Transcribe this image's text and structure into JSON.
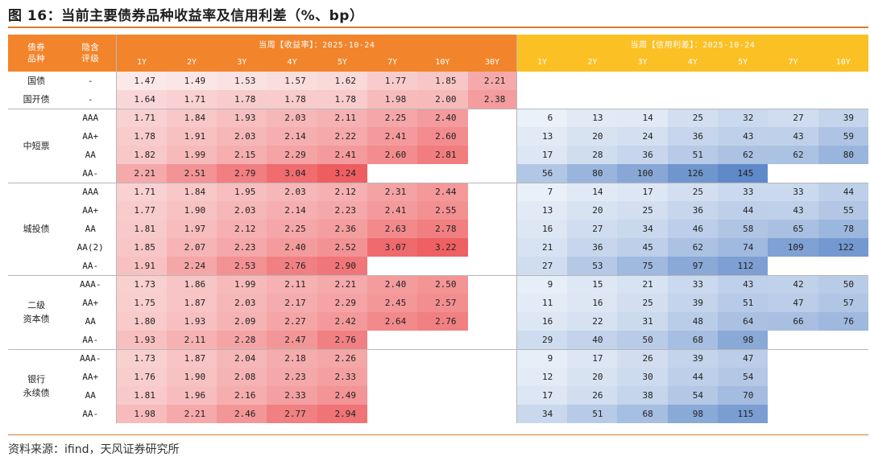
{
  "title": "图 16：当前主要债券品种收益率及信用利差（%、bp）",
  "source": "资料来源：ifind，天风证券研究所",
  "header": {
    "col_type": "债券品种",
    "col_type_lines": [
      "债券",
      "品种"
    ],
    "col_rating_lines": [
      "隐含",
      "评级"
    ],
    "yield_title": "当周【收益率】：2025-10-24",
    "spread_title": "当周【信用利差】：2025-10-24",
    "yield_tenors": [
      "1Y",
      "2Y",
      "3Y",
      "4Y",
      "5Y",
      "7Y",
      "10Y",
      "30Y"
    ],
    "spread_tenors": [
      "1Y",
      "2Y",
      "3Y",
      "4Y",
      "5Y",
      "7Y",
      "10Y"
    ]
  },
  "groups": [
    {
      "name": "国债",
      "name_lines": [
        "国债"
      ],
      "rows": [
        {
          "rating": "-",
          "yields": [
            "1.47",
            "1.49",
            "1.53",
            "1.57",
            "1.62",
            "1.77",
            "1.85",
            "2.21"
          ],
          "spreads": [
            "",
            "",
            "",
            "",
            "",
            "",
            ""
          ]
        }
      ]
    },
    {
      "name": "国开债",
      "name_lines": [
        "国开债"
      ],
      "rows": [
        {
          "rating": "-",
          "yields": [
            "1.64",
            "1.71",
            "1.78",
            "1.78",
            "1.78",
            "1.98",
            "2.00",
            "2.38"
          ],
          "spreads": [
            "",
            "",
            "",
            "",
            "",
            "",
            ""
          ]
        }
      ]
    },
    {
      "name": "中短票",
      "name_lines": [
        "中短票"
      ],
      "rows": [
        {
          "rating": "AAA",
          "yields": [
            "1.71",
            "1.84",
            "1.93",
            "2.03",
            "2.11",
            "2.25",
            "2.40",
            ""
          ],
          "spreads": [
            "6",
            "13",
            "14",
            "25",
            "32",
            "27",
            "39"
          ]
        },
        {
          "rating": "AA+",
          "yields": [
            "1.78",
            "1.91",
            "2.03",
            "2.14",
            "2.22",
            "2.41",
            "2.60",
            ""
          ],
          "spreads": [
            "13",
            "20",
            "24",
            "36",
            "43",
            "43",
            "59"
          ]
        },
        {
          "rating": "AA",
          "yields": [
            "1.82",
            "1.99",
            "2.15",
            "2.29",
            "2.41",
            "2.60",
            "2.81",
            ""
          ],
          "spreads": [
            "17",
            "28",
            "36",
            "51",
            "62",
            "62",
            "80"
          ]
        },
        {
          "rating": "AA-",
          "yields": [
            "2.21",
            "2.51",
            "2.79",
            "3.04",
            "3.24",
            "",
            "",
            ""
          ],
          "spreads": [
            "56",
            "80",
            "100",
            "126",
            "145",
            "",
            ""
          ]
        }
      ]
    },
    {
      "name": "城投债",
      "name_lines": [
        "城投债"
      ],
      "rows": [
        {
          "rating": "AAA",
          "yields": [
            "1.71",
            "1.84",
            "1.95",
            "2.03",
            "2.12",
            "2.31",
            "2.44",
            ""
          ],
          "spreads": [
            "7",
            "14",
            "17",
            "25",
            "33",
            "33",
            "44"
          ]
        },
        {
          "rating": "AA+",
          "yields": [
            "1.77",
            "1.90",
            "2.03",
            "2.14",
            "2.23",
            "2.41",
            "2.55",
            ""
          ],
          "spreads": [
            "13",
            "20",
            "25",
            "36",
            "44",
            "43",
            "55"
          ]
        },
        {
          "rating": "AA",
          "yields": [
            "1.81",
            "1.97",
            "2.12",
            "2.25",
            "2.36",
            "2.63",
            "2.78",
            ""
          ],
          "spreads": [
            "16",
            "27",
            "34",
            "46",
            "58",
            "65",
            "78"
          ]
        },
        {
          "rating": "AA(2)",
          "yields": [
            "1.85",
            "2.07",
            "2.23",
            "2.40",
            "2.52",
            "3.07",
            "3.22",
            ""
          ],
          "spreads": [
            "21",
            "36",
            "45",
            "62",
            "74",
            "109",
            "122"
          ]
        },
        {
          "rating": "AA-",
          "yields": [
            "1.91",
            "2.24",
            "2.53",
            "2.76",
            "2.90",
            "",
            "",
            ""
          ],
          "spreads": [
            "27",
            "53",
            "75",
            "97",
            "112",
            "",
            ""
          ]
        }
      ]
    },
    {
      "name": "二级资本债",
      "name_lines": [
        "二级",
        "资本债"
      ],
      "rows": [
        {
          "rating": "AAA-",
          "yields": [
            "1.73",
            "1.86",
            "1.99",
            "2.11",
            "2.21",
            "2.40",
            "2.50",
            ""
          ],
          "spreads": [
            "9",
            "15",
            "21",
            "33",
            "43",
            "42",
            "50"
          ]
        },
        {
          "rating": "AA+",
          "yields": [
            "1.75",
            "1.87",
            "2.03",
            "2.17",
            "2.29",
            "2.45",
            "2.57",
            ""
          ],
          "spreads": [
            "11",
            "16",
            "25",
            "39",
            "51",
            "47",
            "57"
          ]
        },
        {
          "rating": "AA",
          "yields": [
            "1.80",
            "1.93",
            "2.09",
            "2.27",
            "2.42",
            "2.64",
            "2.76",
            ""
          ],
          "spreads": [
            "16",
            "22",
            "31",
            "48",
            "64",
            "66",
            "76"
          ]
        },
        {
          "rating": "AA-",
          "yields": [
            "1.93",
            "2.11",
            "2.28",
            "2.47",
            "2.76",
            "",
            "",
            ""
          ],
          "spreads": [
            "29",
            "40",
            "50",
            "68",
            "98",
            "",
            ""
          ]
        }
      ]
    },
    {
      "name": "银行永续债",
      "name_lines": [
        "银行",
        "永续债"
      ],
      "rows": [
        {
          "rating": "AAA-",
          "yields": [
            "1.73",
            "1.87",
            "2.04",
            "2.18",
            "2.26",
            "",
            "",
            ""
          ],
          "spreads": [
            "9",
            "17",
            "26",
            "39",
            "47",
            "",
            ""
          ]
        },
        {
          "rating": "AA+",
          "yields": [
            "1.76",
            "1.90",
            "2.08",
            "2.23",
            "2.33",
            "",
            "",
            ""
          ],
          "spreads": [
            "12",
            "20",
            "30",
            "44",
            "54",
            "",
            ""
          ]
        },
        {
          "rating": "AA",
          "yields": [
            "1.81",
            "1.96",
            "2.16",
            "2.33",
            "2.49",
            "",
            "",
            ""
          ],
          "spreads": [
            "17",
            "26",
            "38",
            "54",
            "70",
            "",
            ""
          ]
        },
        {
          "rating": "AA-",
          "yields": [
            "1.98",
            "2.21",
            "2.46",
            "2.77",
            "2.94",
            "",
            "",
            ""
          ],
          "spreads": [
            "34",
            "51",
            "68",
            "98",
            "115",
            "",
            ""
          ]
        }
      ]
    }
  ],
  "colors": {
    "header_orange": "#f2842b",
    "header_yellow": "#fbc024",
    "heat_red_low": "#fbeaea",
    "heat_red_high": "#ee5a5d",
    "heat_blue_low": "#f4f8fc",
    "heat_blue_high": "#5b86c7",
    "rule": "#d97a2b"
  }
}
